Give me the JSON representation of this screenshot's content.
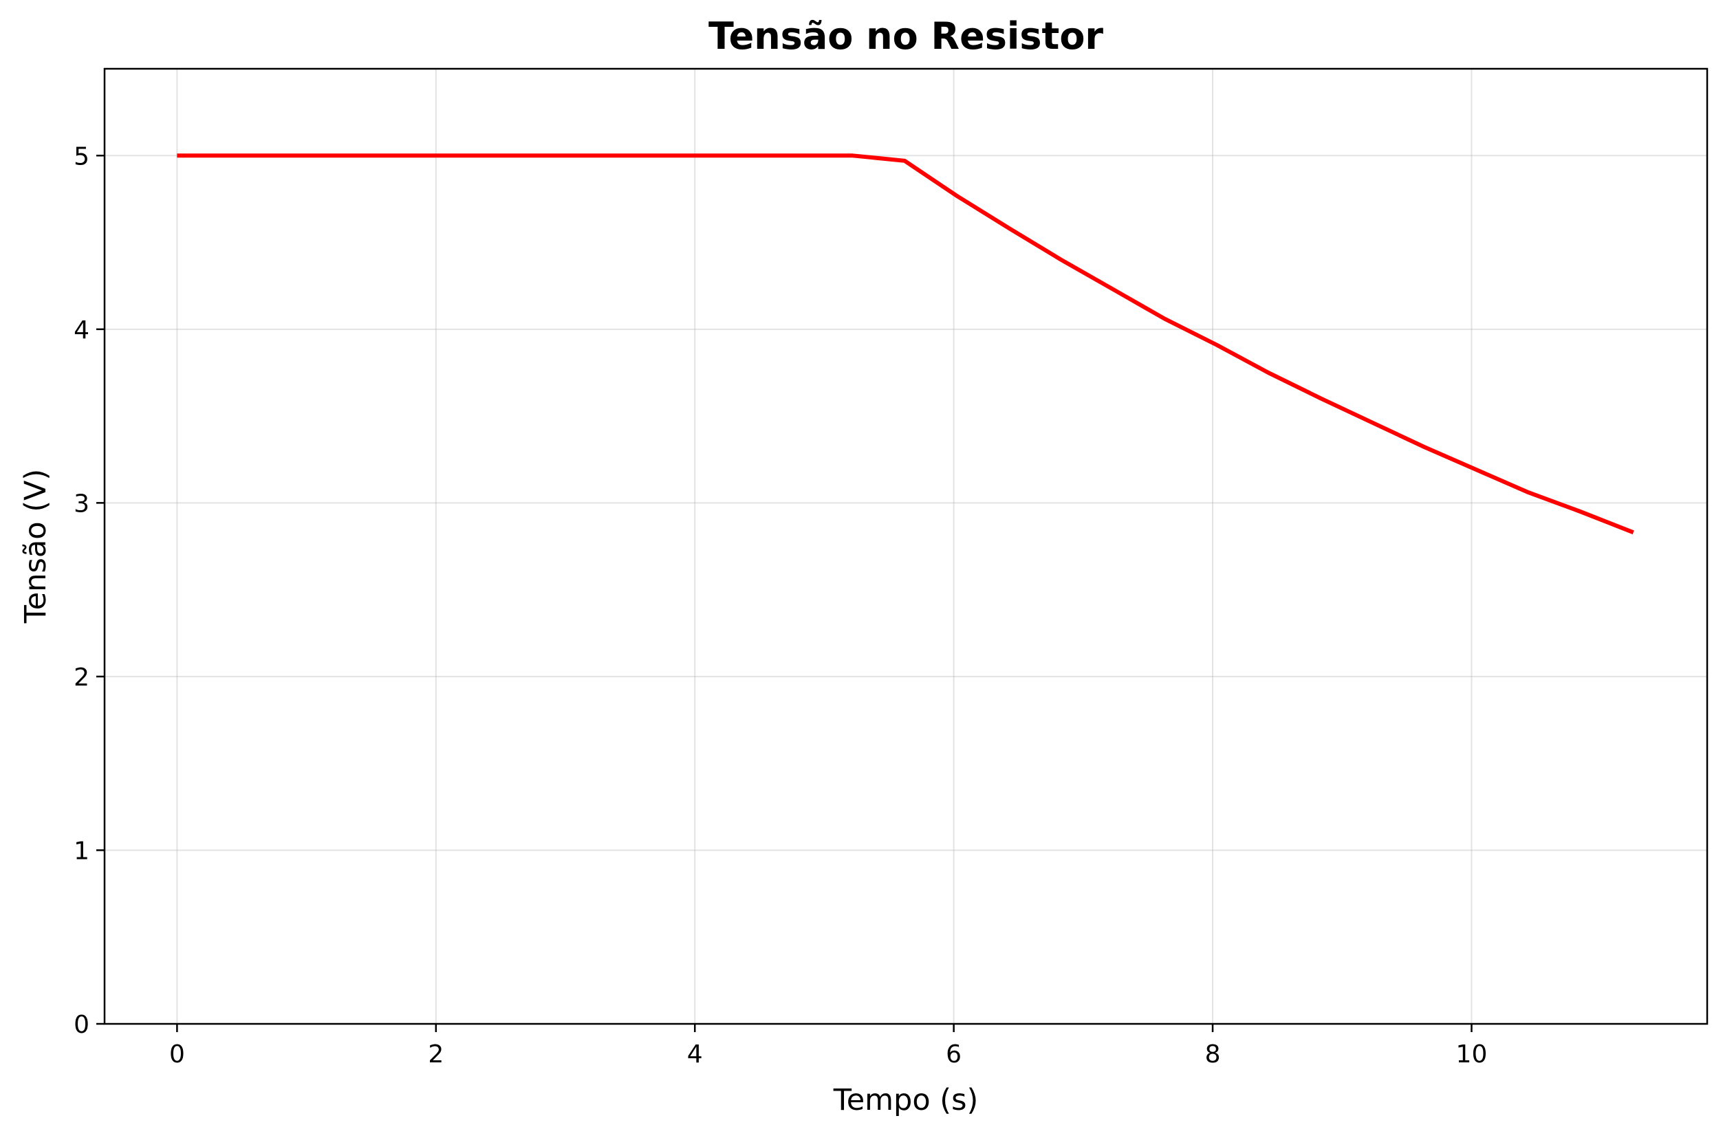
{
  "chart_data": {
    "type": "line",
    "title": "Tensão no Resistor",
    "xlabel": "Tempo (s)",
    "ylabel": "Tensão (V)",
    "xlim": [
      -0.56,
      11.82
    ],
    "ylim": [
      0,
      5.5
    ],
    "xticks": [
      0,
      2,
      4,
      6,
      8,
      10
    ],
    "xtick_labels": [
      "0",
      "2",
      "4",
      "6",
      "8",
      "10"
    ],
    "yticks": [
      0,
      1,
      2,
      3,
      4,
      5
    ],
    "ytick_labels": [
      "0",
      "1",
      "2",
      "3",
      "4",
      "5"
    ],
    "grid": true,
    "series": [
      {
        "color": "#ff0000",
        "x": [
          0,
          5.22,
          5.62,
          6.02,
          6.43,
          6.83,
          7.23,
          7.63,
          8.03,
          8.43,
          8.84,
          9.24,
          9.64,
          10.04,
          10.44,
          10.84,
          11.25
        ],
        "y": [
          5.0,
          5.0,
          4.97,
          4.77,
          4.58,
          4.4,
          4.23,
          4.06,
          3.91,
          3.75,
          3.6,
          3.46,
          3.32,
          3.19,
          3.06,
          2.95,
          2.83
        ]
      }
    ]
  }
}
